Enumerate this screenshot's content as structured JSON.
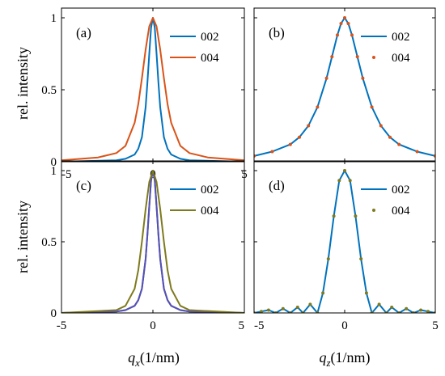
{
  "figure": {
    "ylabel": "rel. intensity",
    "xlabel_left": {
      "var": "q",
      "sub": "x",
      "unit": "(1/nm)"
    },
    "xlabel_right": {
      "var": "q",
      "sub": "z",
      "unit": "(1/nm)"
    }
  },
  "colors": {
    "blue": "#0072BD",
    "orange": "#D95319",
    "olive": "#7E7A1E",
    "purple": "#5A4FB0"
  },
  "chart_data": [
    {
      "type": "line",
      "label": "(a)",
      "xlim": [
        -5,
        5
      ],
      "ylim": [
        0,
        1
      ],
      "xticks": [
        -5,
        0,
        5
      ],
      "yticks": [
        0,
        0.5,
        1
      ],
      "grid": false,
      "legend": "top-right",
      "series": [
        {
          "name": "002",
          "color": "#0072BD",
          "style": "line",
          "x": [
            -5,
            -2,
            -1.5,
            -1,
            -0.8,
            -0.6,
            -0.4,
            -0.3,
            -0.2,
            -0.1,
            0,
            0.1,
            0.2,
            0.3,
            0.4,
            0.6,
            0.8,
            1,
            1.5,
            2,
            5
          ],
          "y": [
            0,
            0.01,
            0.02,
            0.05,
            0.09,
            0.17,
            0.38,
            0.55,
            0.75,
            0.93,
            1,
            0.93,
            0.75,
            0.55,
            0.38,
            0.17,
            0.09,
            0.05,
            0.02,
            0.01,
            0
          ]
        },
        {
          "name": "004",
          "color": "#D95319",
          "style": "line",
          "x": [
            -5,
            -3,
            -2,
            -1.5,
            -1,
            -0.8,
            -0.6,
            -0.4,
            -0.2,
            0,
            0.2,
            0.4,
            0.6,
            0.8,
            1,
            1.5,
            2,
            3,
            5
          ],
          "y": [
            0.01,
            0.03,
            0.06,
            0.11,
            0.27,
            0.4,
            0.58,
            0.78,
            0.94,
            1,
            0.94,
            0.78,
            0.58,
            0.4,
            0.27,
            0.11,
            0.06,
            0.03,
            0.01
          ]
        }
      ]
    },
    {
      "type": "line",
      "label": "(b)",
      "xlim": [
        -5,
        5
      ],
      "ylim": [
        0,
        1
      ],
      "xticks": [
        -5,
        0,
        5
      ],
      "yticks": [
        0,
        0.5,
        1
      ],
      "grid": false,
      "legend": "top-right",
      "series": [
        {
          "name": "002",
          "color": "#0072BD",
          "style": "line",
          "x": [
            -5,
            -4,
            -3,
            -2.5,
            -2,
            -1.5,
            -1,
            -0.7,
            -0.4,
            -0.2,
            0,
            0.2,
            0.4,
            0.7,
            1,
            1.5,
            2,
            2.5,
            3,
            4,
            5
          ],
          "y": [
            0.04,
            0.07,
            0.12,
            0.17,
            0.25,
            0.38,
            0.58,
            0.73,
            0.88,
            0.96,
            1,
            0.96,
            0.88,
            0.73,
            0.58,
            0.38,
            0.25,
            0.17,
            0.12,
            0.07,
            0.04
          ]
        },
        {
          "name": "004",
          "color": "#D95319",
          "style": "dots",
          "x": [
            -5,
            -4,
            -3,
            -2.5,
            -2,
            -1.5,
            -1,
            -0.7,
            -0.4,
            -0.2,
            0,
            0.2,
            0.4,
            0.7,
            1,
            1.5,
            2,
            2.5,
            3,
            4,
            5
          ],
          "y": [
            0.04,
            0.07,
            0.12,
            0.17,
            0.25,
            0.38,
            0.58,
            0.73,
            0.88,
            0.96,
            1,
            0.96,
            0.88,
            0.73,
            0.58,
            0.38,
            0.25,
            0.17,
            0.12,
            0.07,
            0.04
          ]
        }
      ]
    },
    {
      "type": "line",
      "label": "(c)",
      "xlim": [
        -5,
        5
      ],
      "ylim": [
        0,
        1
      ],
      "xticks": [
        -5,
        0,
        5
      ],
      "yticks": [
        0,
        0.5,
        1
      ],
      "grid": false,
      "legend": "top-right",
      "series": [
        {
          "name": "002",
          "color": "#0072BD",
          "style": "line",
          "x": [
            -5,
            -2,
            -1.5,
            -1,
            -0.8,
            -0.6,
            -0.4,
            -0.3,
            -0.2,
            -0.1,
            0,
            0.1,
            0.2,
            0.3,
            0.4,
            0.6,
            0.8,
            1,
            1.5,
            2,
            5
          ],
          "y": [
            0,
            0.01,
            0.02,
            0.05,
            0.09,
            0.17,
            0.38,
            0.55,
            0.75,
            0.93,
            1,
            0.93,
            0.75,
            0.55,
            0.38,
            0.17,
            0.09,
            0.05,
            0.02,
            0.01,
            0
          ]
        },
        {
          "name": "",
          "color": "#5A4FB0",
          "style": "line",
          "x": [
            -5,
            -2,
            -1.5,
            -1,
            -0.8,
            -0.6,
            -0.4,
            -0.3,
            -0.2,
            -0.1,
            0,
            0.1,
            0.2,
            0.3,
            0.4,
            0.6,
            0.8,
            1,
            1.5,
            2,
            5
          ],
          "y": [
            0,
            0.01,
            0.02,
            0.05,
            0.09,
            0.17,
            0.38,
            0.55,
            0.75,
            0.93,
            1,
            0.93,
            0.75,
            0.55,
            0.38,
            0.17,
            0.09,
            0.05,
            0.02,
            0.01,
            0
          ]
        },
        {
          "name": "004",
          "color": "#7E7A1E",
          "style": "line",
          "x": [
            -5,
            -2,
            -1.5,
            -1,
            -0.8,
            -0.6,
            -0.4,
            -0.2,
            0,
            0.2,
            0.4,
            0.6,
            0.8,
            1,
            1.5,
            2,
            5
          ],
          "y": [
            0,
            0.02,
            0.05,
            0.17,
            0.3,
            0.5,
            0.73,
            0.92,
            1,
            0.92,
            0.73,
            0.5,
            0.3,
            0.17,
            0.05,
            0.02,
            0
          ]
        }
      ]
    },
    {
      "type": "line",
      "label": "(d)",
      "xlim": [
        -5,
        5
      ],
      "ylim": [
        0,
        1
      ],
      "xticks": [
        -5,
        0,
        5
      ],
      "yticks": [
        0,
        0.5,
        1
      ],
      "grid": false,
      "legend": "top-right",
      "series": [
        {
          "name": "002",
          "color": "#0072BD",
          "style": "line",
          "x": [
            -5,
            -4.6,
            -4.2,
            -3.8,
            -3.4,
            -3.0,
            -2.6,
            -2.3,
            -1.9,
            -1.5,
            -1.2,
            -0.9,
            -0.6,
            -0.3,
            0,
            0.3,
            0.6,
            0.9,
            1.2,
            1.5,
            1.9,
            2.3,
            2.6,
            3.0,
            3.4,
            3.8,
            4.2,
            4.6,
            5
          ],
          "y": [
            0,
            0.01,
            0.02,
            0,
            0.03,
            0,
            0.04,
            0,
            0.06,
            0,
            0.14,
            0.38,
            0.68,
            0.93,
            1,
            0.93,
            0.68,
            0.38,
            0.14,
            0,
            0.06,
            0,
            0.04,
            0,
            0.03,
            0,
            0.02,
            0.01,
            0
          ]
        },
        {
          "name": "004",
          "color": "#7E7A1E",
          "style": "dots",
          "x": [
            -5,
            -4.6,
            -4.2,
            -3.8,
            -3.4,
            -3.0,
            -2.6,
            -2.3,
            -1.9,
            -1.5,
            -1.2,
            -0.9,
            -0.6,
            -0.3,
            0,
            0.3,
            0.6,
            0.9,
            1.2,
            1.5,
            1.9,
            2.3,
            2.6,
            3.0,
            3.4,
            3.8,
            4.2,
            4.6,
            5
          ],
          "y": [
            0,
            0.01,
            0.02,
            0,
            0.03,
            0,
            0.04,
            0,
            0.06,
            0,
            0.14,
            0.38,
            0.68,
            0.93,
            1,
            0.93,
            0.68,
            0.38,
            0.14,
            0,
            0.06,
            0,
            0.04,
            0,
            0.03,
            0,
            0.02,
            0.01,
            0
          ]
        }
      ]
    }
  ]
}
